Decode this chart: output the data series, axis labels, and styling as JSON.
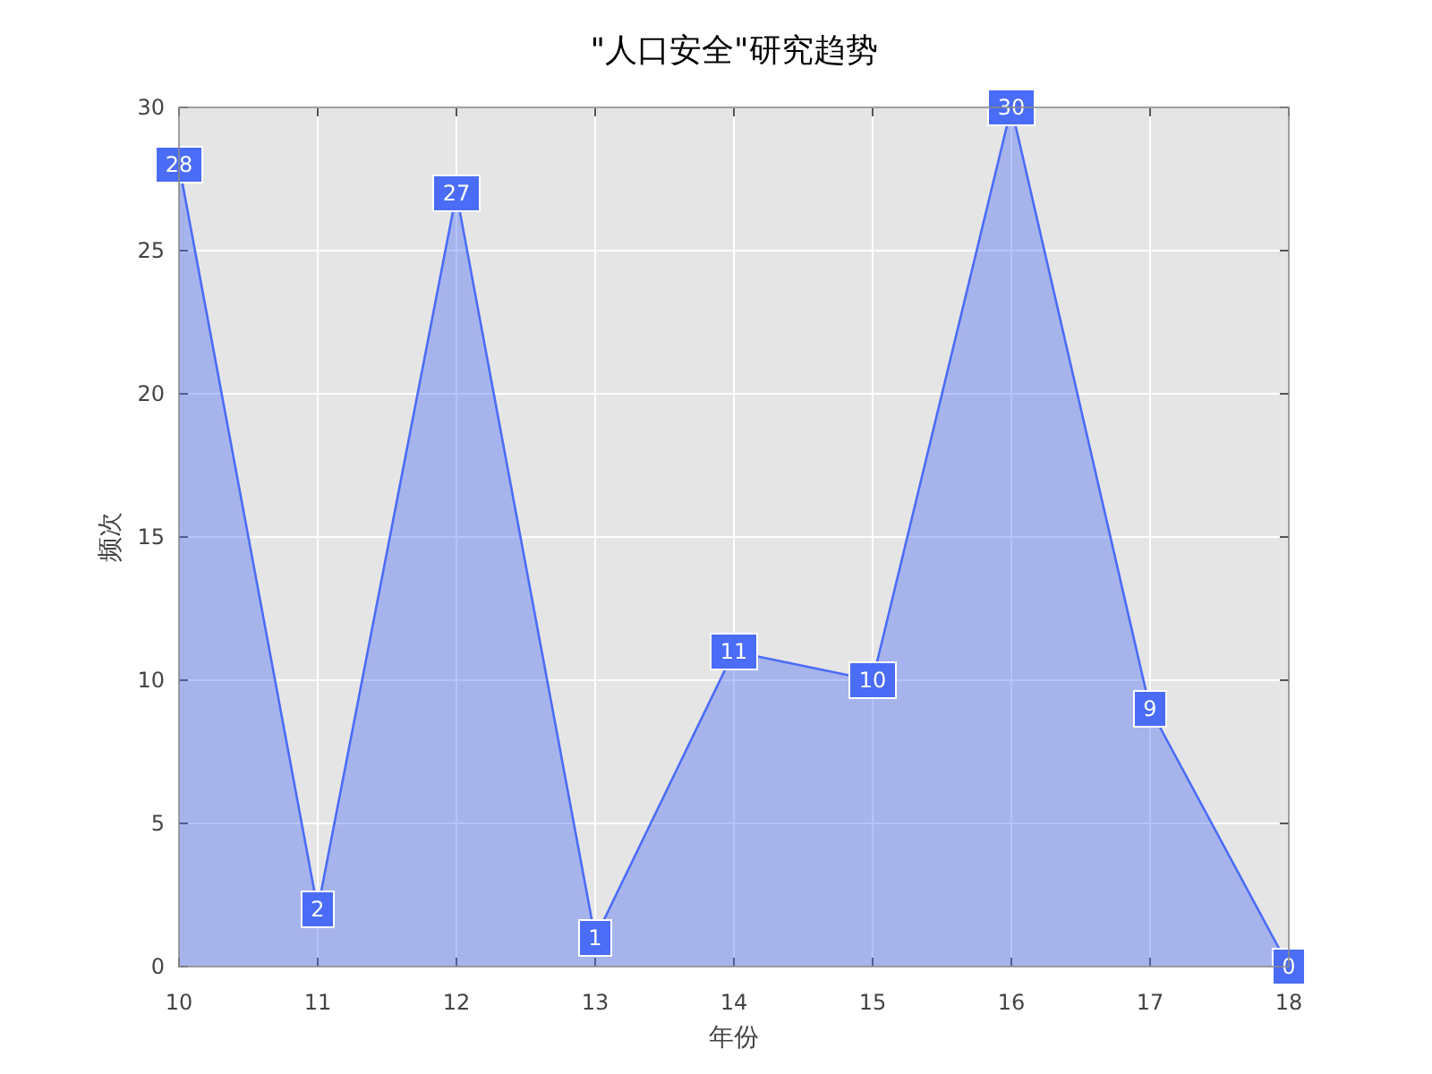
{
  "chart_data": {
    "type": "area",
    "title": "\"人口安全\"研究趋势",
    "xlabel": "年份",
    "ylabel": "频次",
    "x": [
      10,
      11,
      12,
      13,
      14,
      15,
      16,
      17,
      18
    ],
    "series": [
      {
        "color": "#4a6cf7",
        "values": [
          28,
          2,
          27,
          1,
          11,
          10,
          30,
          9,
          0
        ]
      }
    ],
    "xlim": [
      10,
      18
    ],
    "ylim": [
      0,
      30
    ],
    "xticks": [
      10,
      11,
      12,
      13,
      14,
      15,
      16,
      17,
      18
    ],
    "yticks": [
      0,
      5,
      10,
      15,
      20,
      25,
      30
    ],
    "grid": true,
    "data_labels": true
  }
}
